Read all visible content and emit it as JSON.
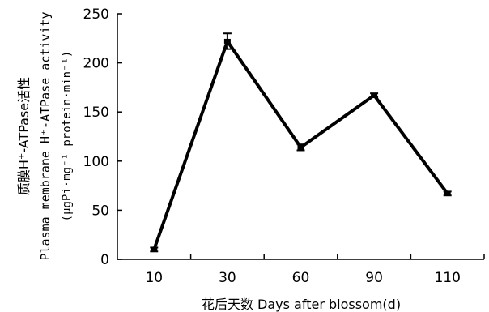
{
  "chart_data": {
    "type": "line",
    "categories": [
      "10",
      "30",
      "60",
      "90",
      "110"
    ],
    "series": [
      {
        "name": "",
        "values": [
          10,
          222,
          114,
          167,
          67
        ],
        "errors": [
          2,
          8,
          3,
          2,
          2
        ]
      }
    ],
    "ylim": [
      0,
      250
    ],
    "yticks": [
      0,
      50,
      100,
      150,
      200,
      250
    ],
    "xlabel": "花后天数 Days after blossom(d)",
    "ylabel_lines": [
      "质膜H⁺-ATPase活性",
      "Plasma membrane H⁺-ATPase activity",
      "(μgPi·mg⁻¹ protein·min⁻¹)"
    ],
    "grid": false,
    "line_color": "#000000"
  }
}
